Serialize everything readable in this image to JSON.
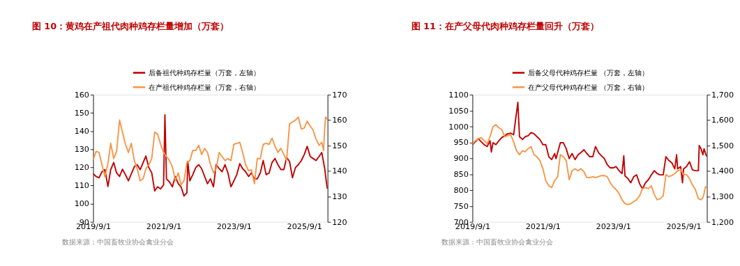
{
  "chart_data": [
    {
      "type": "line",
      "title": "图 10：黄鸡在产祖代肉种鸡存栏量增加（万套）",
      "annotations": [
        "数据来源：中国畜牧业协会禽业分会"
      ],
      "legend": "top",
      "grid": false,
      "xlim": [
        "2019-09-01",
        "2026-05-01"
      ],
      "xticks": [
        {
          "value": "2019-09-01",
          "label": "2019/9/1"
        },
        {
          "value": "2021-09-01",
          "label": "2021/9/1"
        },
        {
          "value": "2023-09-01",
          "label": "2023/9/1"
        },
        {
          "value": "2025-09-01",
          "label": "2025/9/1"
        }
      ],
      "ylim": [
        90,
        160
      ],
      "yticks": [
        90,
        100,
        110,
        120,
        130,
        140,
        150,
        160
      ],
      "y2lim": [
        120,
        170
      ],
      "y2ticks": [
        120,
        130,
        140,
        150,
        160,
        170
      ],
      "series": [
        {
          "name": "后备祖代种鸡存栏量（万套，左轴）",
          "color": "#c00000",
          "x": [
            "2019-09-01",
            "2019-10-01",
            "2019-11-01",
            "2019-12-01",
            "2020-01-01",
            "2020-02-01",
            "2020-03-01",
            "2020-04-01",
            "2020-05-01",
            "2020-06-01",
            "2020-07-01",
            "2020-08-01",
            "2020-09-01",
            "2020-10-01",
            "2020-11-01",
            "2020-12-01",
            "2021-01-01",
            "2021-02-01",
            "2021-03-01",
            "2021-04-01",
            "2021-05-01",
            "2021-06-01",
            "2021-07-01",
            "2021-08-01",
            "2021-09-01",
            "2021-09-15",
            "2021-10-01",
            "2021-11-01",
            "2021-12-01",
            "2022-01-01",
            "2022-02-01",
            "2022-03-01",
            "2022-04-01",
            "2022-05-01",
            "2022-05-10",
            "2022-06-01",
            "2022-07-01",
            "2022-08-01",
            "2022-09-01",
            "2022-10-01",
            "2022-11-01",
            "2022-12-01",
            "2023-01-01",
            "2023-02-01",
            "2023-03-01",
            "2023-04-01",
            "2023-05-01",
            "2023-06-01",
            "2023-07-01",
            "2023-08-01",
            "2023-09-01",
            "2023-10-01",
            "2023-11-01",
            "2023-12-01",
            "2024-01-01",
            "2024-02-01",
            "2024-03-01",
            "2024-04-01",
            "2024-05-01",
            "2024-06-01",
            "2024-07-01",
            "2024-08-01",
            "2024-09-01",
            "2024-10-01",
            "2024-11-01",
            "2024-12-01",
            "2025-01-01",
            "2025-02-01",
            "2025-03-01",
            "2025-04-01",
            "2025-05-01",
            "2025-06-01",
            "2025-07-01",
            "2025-08-01",
            "2025-09-01",
            "2025-10-01",
            "2025-11-01",
            "2025-12-01",
            "2026-01-01",
            "2026-02-01",
            "2026-03-01",
            "2026-04-01",
            "2026-04-20",
            "2026-04-28"
          ],
          "values": [
            116.5,
            115,
            114.3,
            117.6,
            118.8,
            109.5,
            118.8,
            122.7,
            117,
            115,
            119,
            116,
            112.6,
            116.5,
            120.4,
            121.5,
            118.8,
            122.7,
            126.2,
            119.9,
            117,
            107,
            109.3,
            108.2,
            110.4,
            148.9,
            113.7,
            112,
            109.3,
            115,
            111,
            109.3,
            104.3,
            106,
            123.2,
            112.6,
            116,
            119.9,
            121.5,
            119.3,
            115,
            111,
            113.7,
            109.3,
            121.5,
            119.3,
            117.6,
            121.5,
            117,
            109.3,
            112.6,
            116,
            122.1,
            119.3,
            117.6,
            115,
            117,
            113.7,
            113.7,
            117,
            123.8,
            116,
            117,
            122.7,
            124.9,
            121.5,
            118.8,
            118.8,
            125.5,
            123.2,
            114.3,
            119.9,
            121.5,
            123.8,
            127.1,
            131.6,
            126,
            124.9,
            123.8,
            126,
            128.2,
            119.3,
            111,
            108.2
          ]
        },
        {
          "name": "在产祖代种鸡存栏量（万套，右轴）",
          "color": "#f79646",
          "axis": "y2",
          "x": [
            "2019-09-01",
            "2019-10-01",
            "2019-11-01",
            "2019-12-01",
            "2020-01-01",
            "2020-02-01",
            "2020-03-01",
            "2020-04-01",
            "2020-05-01",
            "2020-06-01",
            "2020-07-01",
            "2020-08-01",
            "2020-09-01",
            "2020-10-01",
            "2020-11-01",
            "2020-12-01",
            "2021-01-01",
            "2021-02-01",
            "2021-03-01",
            "2021-04-01",
            "2021-05-01",
            "2021-06-01",
            "2021-07-01",
            "2021-08-01",
            "2021-09-01",
            "2021-10-01",
            "2021-11-01",
            "2021-12-01",
            "2022-01-01",
            "2022-02-01",
            "2022-03-01",
            "2022-04-01",
            "2022-05-01",
            "2022-06-01",
            "2022-07-01",
            "2022-08-01",
            "2022-09-01",
            "2022-10-01",
            "2022-11-01",
            "2022-12-01",
            "2023-01-01",
            "2023-02-01",
            "2023-03-01",
            "2023-04-01",
            "2023-05-01",
            "2023-06-01",
            "2023-07-01",
            "2023-08-01",
            "2023-09-01",
            "2023-10-01",
            "2023-11-01",
            "2023-12-01",
            "2024-01-01",
            "2024-02-01",
            "2024-03-01",
            "2024-04-01",
            "2024-05-01",
            "2024-06-01",
            "2024-07-01",
            "2024-08-01",
            "2024-09-01",
            "2024-10-01",
            "2024-11-01",
            "2024-12-01",
            "2025-01-01",
            "2025-02-01",
            "2025-03-01",
            "2025-04-01",
            "2025-05-01",
            "2025-06-01",
            "2025-07-01",
            "2025-08-01",
            "2025-09-01",
            "2025-10-01",
            "2025-11-01",
            "2025-12-01",
            "2026-01-01",
            "2026-02-01",
            "2026-03-01",
            "2026-03-20",
            "2026-04-01",
            "2026-04-10",
            "2026-04-28"
          ],
          "values": [
            144.5,
            147.7,
            147.3,
            142.5,
            137.8,
            142.9,
            150.9,
            144.9,
            147.7,
            160,
            155.3,
            150.5,
            147.3,
            150.9,
            144.1,
            140.9,
            136.2,
            137,
            140.9,
            142.5,
            144.9,
            155.3,
            154.5,
            150.5,
            147.3,
            145.7,
            144.1,
            141.7,
            136.2,
            139.3,
            134.6,
            136.2,
            143.3,
            144.1,
            148.1,
            148.1,
            150.1,
            146.5,
            148.9,
            147.3,
            142.5,
            139.3,
            140.9,
            147.3,
            145.7,
            144.1,
            144.9,
            144.1,
            150.5,
            150.9,
            151.3,
            147.3,
            142.5,
            140.1,
            140.5,
            135,
            144.9,
            144.9,
            150.5,
            150.9,
            150.5,
            152.9,
            149.7,
            147.3,
            148.9,
            146.5,
            144.1,
            158.5,
            159.3,
            160,
            161.2,
            156.5,
            156.9,
            159.6,
            157.7,
            156.1,
            152.5,
            150.1,
            151.3,
            148.1,
            156.9,
            161.2,
            160.4
          ]
        }
      ]
    },
    {
      "type": "line",
      "title": "图 11：在产父母代肉种鸡存栏量回升（万套）",
      "annotations": [
        "数据来源：中国畜牧业协会禽业分会"
      ],
      "legend": "top",
      "grid": false,
      "xlim": [
        "2019-09-01",
        "2026-05-01"
      ],
      "xticks": [
        {
          "value": "2019-09-01",
          "label": "2019/9/1"
        },
        {
          "value": "2021-09-01",
          "label": "2021/9/1"
        },
        {
          "value": "2023-09-01",
          "label": "2023/9/1"
        },
        {
          "value": "2025-09-01",
          "label": "2025/9/1"
        }
      ],
      "ylim": [
        700,
        1100
      ],
      "yticks": [
        700,
        750,
        800,
        850,
        900,
        950,
        1000,
        1050,
        1100
      ],
      "y2lim": [
        1200,
        1700
      ],
      "y2ticks": [
        {
          "value": 1200,
          "label": "1,200"
        },
        {
          "value": 1300,
          "label": "1,300"
        },
        {
          "value": 1400,
          "label": "1,400"
        },
        {
          "value": 1500,
          "label": "1,500"
        },
        {
          "value": 1600,
          "label": "1,600"
        },
        {
          "value": 1700,
          "label": "1,700"
        }
      ],
      "series": [
        {
          "name": "后备父母代种鸡存栏量 （万套，左轴）",
          "color": "#c00000",
          "x": [
            "2019-09-01",
            "2019-10-01",
            "2019-11-01",
            "2019-12-01",
            "2020-01-01",
            "2020-02-01",
            "2020-03-01",
            "2020-03-15",
            "2020-04-01",
            "2020-05-01",
            "2020-06-01",
            "2020-07-01",
            "2020-08-01",
            "2020-09-01",
            "2020-10-01",
            "2020-11-01",
            "2020-12-15",
            "2021-01-01",
            "2021-02-01",
            "2021-03-01",
            "2021-04-01",
            "2021-05-01",
            "2021-06-01",
            "2021-07-01",
            "2021-08-01",
            "2021-09-01",
            "2021-10-01",
            "2021-11-01",
            "2021-12-01",
            "2022-01-01",
            "2022-01-15",
            "2022-03-01",
            "2022-04-01",
            "2022-05-01",
            "2022-06-01",
            "2022-07-01",
            "2022-08-01",
            "2022-09-01",
            "2022-10-01",
            "2022-11-01",
            "2022-12-01",
            "2023-01-01",
            "2023-02-01",
            "2023-03-01",
            "2023-04-01",
            "2023-05-01",
            "2023-06-01",
            "2023-07-01",
            "2023-08-01",
            "2023-09-01",
            "2023-10-01",
            "2023-11-01",
            "2023-12-01",
            "2023-12-20",
            "2024-01-01",
            "2024-02-01",
            "2024-03-01",
            "2024-04-01",
            "2024-05-01",
            "2024-06-01",
            "2024-07-01",
            "2024-08-01",
            "2024-09-01",
            "2024-10-01",
            "2024-11-01",
            "2024-12-01",
            "2025-01-01",
            "2025-02-01",
            "2025-03-01",
            "2025-04-01",
            "2025-05-01",
            "2025-06-01",
            "2025-06-20",
            "2025-07-01",
            "2025-08-01",
            "2025-08-20",
            "2025-09-01",
            "2025-10-01",
            "2025-11-01",
            "2025-12-01",
            "2026-01-01",
            "2026-02-01",
            "2026-02-10",
            "2026-03-01",
            "2026-03-20",
            "2026-04-01",
            "2026-04-28"
          ],
          "values": [
            943,
            952,
            962,
            952,
            943,
            937,
            955,
            920,
            949,
            943,
            955,
            965,
            971,
            977,
            979,
            974,
            1076,
            968,
            959,
            968,
            971,
            981,
            977,
            968,
            959,
            943,
            943,
            905,
            896,
            915,
            899,
            949,
            949,
            930,
            899,
            915,
            896,
            911,
            918,
            927,
            915,
            905,
            905,
            937,
            918,
            908,
            899,
            880,
            870,
            870,
            874,
            861,
            852,
            908,
            845,
            836,
            823,
            842,
            848,
            820,
            804,
            823,
            833,
            848,
            861,
            852,
            848,
            848,
            905,
            893,
            886,
            867,
            911,
            867,
            874,
            823,
            867,
            874,
            889,
            864,
            861,
            861,
            940,
            930,
            911,
            930,
            905
          ]
        },
        {
          "name": "在产父母代种鸡存栏量 （万套，右轴）",
          "color": "#f79646",
          "axis": "y2",
          "x": [
            "2019-09-01",
            "2019-10-01",
            "2019-11-01",
            "2019-12-01",
            "2020-01-01",
            "2020-02-01",
            "2020-03-01",
            "2020-04-01",
            "2020-05-01",
            "2020-06-01",
            "2020-07-01",
            "2020-08-01",
            "2020-09-01",
            "2020-10-01",
            "2020-11-01",
            "2020-12-01",
            "2021-01-01",
            "2021-02-01",
            "2021-03-01",
            "2021-04-01",
            "2021-05-01",
            "2021-06-01",
            "2021-07-01",
            "2021-08-01",
            "2021-09-01",
            "2021-10-01",
            "2021-11-01",
            "2021-12-01",
            "2022-01-01",
            "2022-02-01",
            "2022-03-01",
            "2022-04-01",
            "2022-05-01",
            "2022-06-01",
            "2022-07-01",
            "2022-08-01",
            "2022-09-01",
            "2022-10-01",
            "2022-11-01",
            "2022-12-01",
            "2023-01-01",
            "2023-02-01",
            "2023-03-01",
            "2023-04-01",
            "2023-05-01",
            "2023-06-01",
            "2023-07-01",
            "2023-08-01",
            "2023-09-01",
            "2023-10-01",
            "2023-11-01",
            "2023-12-01",
            "2024-01-01",
            "2024-02-01",
            "2024-03-01",
            "2024-04-01",
            "2024-05-01",
            "2024-06-01",
            "2024-07-01",
            "2024-08-01",
            "2024-09-01",
            "2024-10-01",
            "2024-11-01",
            "2024-12-01",
            "2025-01-01",
            "2025-02-01",
            "2025-03-01",
            "2025-04-01",
            "2025-05-01",
            "2025-06-01",
            "2025-07-01",
            "2025-08-01",
            "2025-09-01",
            "2025-10-01",
            "2025-11-01",
            "2025-12-01",
            "2026-01-01",
            "2026-02-01",
            "2026-03-01",
            "2026-03-20",
            "2026-04-01",
            "2026-04-15",
            "2026-04-28"
          ],
          "values": [
            1507,
            1519,
            1527,
            1531,
            1519,
            1507,
            1535,
            1574,
            1582,
            1570,
            1563,
            1535,
            1539,
            1543,
            1515,
            1480,
            1464,
            1480,
            1476,
            1488,
            1496,
            1464,
            1456,
            1441,
            1409,
            1362,
            1342,
            1335,
            1362,
            1378,
            1464,
            1456,
            1441,
            1366,
            1401,
            1409,
            1401,
            1409,
            1397,
            1374,
            1374,
            1378,
            1374,
            1378,
            1382,
            1382,
            1378,
            1354,
            1338,
            1327,
            1311,
            1287,
            1272,
            1268,
            1272,
            1280,
            1287,
            1303,
            1331,
            1335,
            1331,
            1342,
            1307,
            1287,
            1291,
            1303,
            1386,
            1378,
            1382,
            1390,
            1401,
            1405,
            1386,
            1386,
            1370,
            1346,
            1327,
            1291,
            1287,
            1295,
            1311,
            1338,
            1337
          ]
        }
      ]
    }
  ]
}
